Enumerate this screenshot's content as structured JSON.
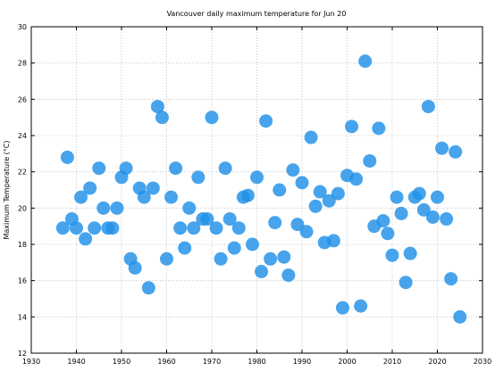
{
  "chart_data": {
    "type": "scatter",
    "title": "Vancouver daily maximum temperature for Jun 20",
    "xlabel": "",
    "ylabel": "Maximum Temperature (°C)",
    "xlim": [
      1930,
      2030
    ],
    "ylim": [
      12,
      30
    ],
    "xticks": [
      1930,
      1940,
      1950,
      1960,
      1970,
      1980,
      1990,
      2000,
      2010,
      2020,
      2030
    ],
    "yticks": [
      12,
      14,
      16,
      18,
      20,
      22,
      24,
      26,
      28,
      30
    ],
    "grid": true,
    "marker_color": "#1e90e8",
    "points": [
      {
        "x": 1937,
        "y": 18.9
      },
      {
        "x": 1938,
        "y": 22.8
      },
      {
        "x": 1939,
        "y": 19.4
      },
      {
        "x": 1940,
        "y": 18.9
      },
      {
        "x": 1941,
        "y": 20.6
      },
      {
        "x": 1942,
        "y": 18.3
      },
      {
        "x": 1943,
        "y": 21.1
      },
      {
        "x": 1944,
        "y": 18.9
      },
      {
        "x": 1945,
        "y": 22.2
      },
      {
        "x": 1946,
        "y": 20.0
      },
      {
        "x": 1947,
        "y": 18.9
      },
      {
        "x": 1948,
        "y": 18.9
      },
      {
        "x": 1949,
        "y": 20.0
      },
      {
        "x": 1950,
        "y": 21.7
      },
      {
        "x": 1951,
        "y": 22.2
      },
      {
        "x": 1952,
        "y": 17.2
      },
      {
        "x": 1953,
        "y": 16.7
      },
      {
        "x": 1954,
        "y": 21.1
      },
      {
        "x": 1955,
        "y": 20.6
      },
      {
        "x": 1956,
        "y": 15.6
      },
      {
        "x": 1957,
        "y": 21.1
      },
      {
        "x": 1958,
        "y": 25.6
      },
      {
        "x": 1959,
        "y": 25.0
      },
      {
        "x": 1960,
        "y": 17.2
      },
      {
        "x": 1961,
        "y": 20.6
      },
      {
        "x": 1962,
        "y": 22.2
      },
      {
        "x": 1963,
        "y": 18.9
      },
      {
        "x": 1964,
        "y": 17.8
      },
      {
        "x": 1965,
        "y": 20.0
      },
      {
        "x": 1966,
        "y": 18.9
      },
      {
        "x": 1967,
        "y": 21.7
      },
      {
        "x": 1968,
        "y": 19.4
      },
      {
        "x": 1969,
        "y": 19.4
      },
      {
        "x": 1970,
        "y": 25.0
      },
      {
        "x": 1971,
        "y": 18.9
      },
      {
        "x": 1972,
        "y": 17.2
      },
      {
        "x": 1973,
        "y": 22.2
      },
      {
        "x": 1974,
        "y": 19.4
      },
      {
        "x": 1975,
        "y": 17.8
      },
      {
        "x": 1976,
        "y": 18.9
      },
      {
        "x": 1977,
        "y": 20.6
      },
      {
        "x": 1978,
        "y": 20.7
      },
      {
        "x": 1979,
        "y": 18.0
      },
      {
        "x": 1980,
        "y": 21.7
      },
      {
        "x": 1981,
        "y": 16.5
      },
      {
        "x": 1982,
        "y": 24.8
      },
      {
        "x": 1983,
        "y": 17.2
      },
      {
        "x": 1984,
        "y": 19.2
      },
      {
        "x": 1985,
        "y": 21.0
      },
      {
        "x": 1986,
        "y": 17.3
      },
      {
        "x": 1987,
        "y": 16.3
      },
      {
        "x": 1988,
        "y": 22.1
      },
      {
        "x": 1989,
        "y": 19.1
      },
      {
        "x": 1990,
        "y": 21.4
      },
      {
        "x": 1991,
        "y": 18.7
      },
      {
        "x": 1992,
        "y": 23.9
      },
      {
        "x": 1993,
        "y": 20.1
      },
      {
        "x": 1994,
        "y": 20.9
      },
      {
        "x": 1995,
        "y": 18.1
      },
      {
        "x": 1996,
        "y": 20.4
      },
      {
        "x": 1997,
        "y": 18.2
      },
      {
        "x": 1998,
        "y": 20.8
      },
      {
        "x": 1999,
        "y": 14.5
      },
      {
        "x": 2000,
        "y": 21.8
      },
      {
        "x": 2001,
        "y": 24.5
      },
      {
        "x": 2002,
        "y": 21.6
      },
      {
        "x": 2003,
        "y": 14.6
      },
      {
        "x": 2004,
        "y": 28.1
      },
      {
        "x": 2005,
        "y": 22.6
      },
      {
        "x": 2006,
        "y": 19.0
      },
      {
        "x": 2007,
        "y": 24.4
      },
      {
        "x": 2008,
        "y": 19.3
      },
      {
        "x": 2009,
        "y": 18.6
      },
      {
        "x": 2010,
        "y": 17.4
      },
      {
        "x": 2011,
        "y": 20.6
      },
      {
        "x": 2012,
        "y": 19.7
      },
      {
        "x": 2013,
        "y": 15.9
      },
      {
        "x": 2014,
        "y": 17.5
      },
      {
        "x": 2015,
        "y": 20.6
      },
      {
        "x": 2016,
        "y": 20.8
      },
      {
        "x": 2017,
        "y": 19.9
      },
      {
        "x": 2018,
        "y": 25.6
      },
      {
        "x": 2019,
        "y": 19.5
      },
      {
        "x": 2020,
        "y": 20.6
      },
      {
        "x": 2021,
        "y": 23.3
      },
      {
        "x": 2022,
        "y": 19.4
      },
      {
        "x": 2023,
        "y": 16.1
      },
      {
        "x": 2024,
        "y": 23.1
      },
      {
        "x": 2025,
        "y": 14.0
      }
    ]
  }
}
